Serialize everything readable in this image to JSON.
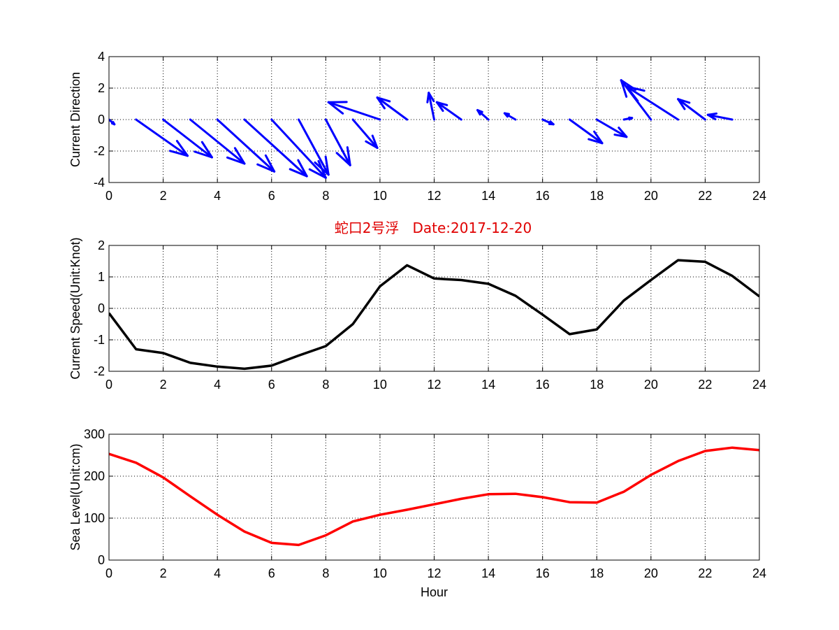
{
  "figure": {
    "title": "蛇口2号浮   Date:2017-12-20",
    "title_color": "#e00000"
  },
  "chart_data": [
    {
      "type": "quiver",
      "ylabel": "Current Direction",
      "xlabel": "",
      "xlim": [
        0,
        24
      ],
      "ylim": [
        -4,
        4
      ],
      "xticks": [
        0,
        2,
        4,
        6,
        8,
        10,
        12,
        14,
        16,
        18,
        20,
        22,
        24
      ],
      "yticks": [
        -4,
        -2,
        0,
        2,
        4
      ],
      "grid": true,
      "color": "#0000ff",
      "vectors": [
        {
          "x": 0,
          "u": 0.2,
          "v": -0.3
        },
        {
          "x": 1,
          "u": 1.9,
          "v": -2.3
        },
        {
          "x": 2,
          "u": 1.8,
          "v": -2.4
        },
        {
          "x": 3,
          "u": 2.0,
          "v": -2.8
        },
        {
          "x": 4,
          "u": 2.1,
          "v": -3.3
        },
        {
          "x": 5,
          "u": 2.3,
          "v": -3.6
        },
        {
          "x": 6,
          "u": 2.0,
          "v": -3.7
        },
        {
          "x": 7,
          "u": 1.1,
          "v": -3.5
        },
        {
          "x": 8,
          "u": 0.9,
          "v": -2.9
        },
        {
          "x": 9,
          "u": 0.9,
          "v": -1.8
        },
        {
          "x": 10,
          "u": -1.9,
          "v": 1.1
        },
        {
          "x": 11,
          "u": -1.1,
          "v": 1.4
        },
        {
          "x": 12,
          "u": -0.2,
          "v": 1.7
        },
        {
          "x": 13,
          "u": -0.9,
          "v": 1.1
        },
        {
          "x": 14,
          "u": -0.4,
          "v": 0.6
        },
        {
          "x": 15,
          "u": -0.4,
          "v": 0.4
        },
        {
          "x": 16,
          "u": 0.4,
          "v": -0.3
        },
        {
          "x": 17,
          "u": 1.2,
          "v": -1.5
        },
        {
          "x": 18,
          "u": 1.1,
          "v": -1.1
        },
        {
          "x": 19,
          "u": 0.3,
          "v": 0.1
        },
        {
          "x": 20,
          "u": -1.1,
          "v": 2.5
        },
        {
          "x": 21,
          "u": -1.9,
          "v": 2.1
        },
        {
          "x": 22,
          "u": -1.0,
          "v": 1.3
        },
        {
          "x": 23,
          "u": -0.9,
          "v": 0.3
        }
      ]
    },
    {
      "type": "line",
      "ylabel": "Current Speed(Unit:Knot)",
      "xlabel": "",
      "xlim": [
        0,
        24
      ],
      "ylim": [
        -2,
        2
      ],
      "xticks": [
        0,
        2,
        4,
        6,
        8,
        10,
        12,
        14,
        16,
        18,
        20,
        22,
        24
      ],
      "yticks": [
        -2,
        -1,
        0,
        1,
        2
      ],
      "grid": true,
      "color": "#000000",
      "x": [
        0,
        1,
        2,
        3,
        4,
        5,
        6,
        7,
        8,
        9,
        10,
        11,
        12,
        13,
        14,
        15,
        16,
        17,
        18,
        19,
        20,
        21,
        22,
        23,
        24
      ],
      "y": [
        -0.15,
        -1.3,
        -1.42,
        -1.73,
        -1.85,
        -1.92,
        -1.82,
        -1.5,
        -1.2,
        -0.5,
        0.7,
        1.37,
        0.95,
        0.9,
        0.78,
        0.4,
        -0.2,
        -0.82,
        -0.67,
        0.25,
        0.9,
        1.53,
        1.48,
        1.03,
        0.38
      ]
    },
    {
      "type": "line",
      "ylabel": "Sea Level(Unit:cm)",
      "xlabel": "Hour",
      "xlim": [
        0,
        24
      ],
      "ylim": [
        0,
        300
      ],
      "xticks": [
        0,
        2,
        4,
        6,
        8,
        10,
        12,
        14,
        16,
        18,
        20,
        22,
        24
      ],
      "yticks": [
        0,
        100,
        200,
        300
      ],
      "grid": true,
      "color": "#ff0000",
      "x": [
        0,
        1,
        2,
        3,
        4,
        5,
        6,
        7,
        8,
        9,
        10,
        11,
        12,
        13,
        14,
        15,
        16,
        17,
        18,
        19,
        20,
        21,
        22,
        23,
        24
      ],
      "y": [
        253,
        232,
        197,
        152,
        108,
        68,
        41,
        36,
        59,
        92,
        108,
        120,
        133,
        146,
        157,
        158,
        150,
        138,
        137,
        163,
        203,
        236,
        260,
        268,
        262
      ]
    }
  ]
}
